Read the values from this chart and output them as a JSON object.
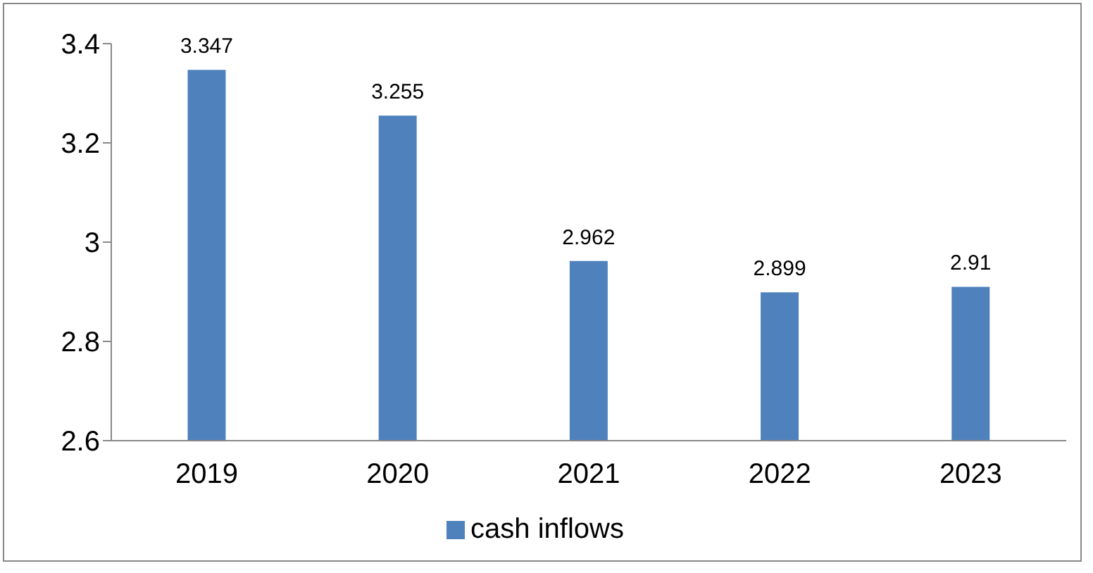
{
  "chart_data": {
    "type": "bar",
    "categories": [
      "2019",
      "2020",
      "2021",
      "2022",
      "2023"
    ],
    "series": [
      {
        "name": "cash inflows",
        "color": "#4f81bd",
        "values": [
          3.347,
          3.255,
          2.962,
          2.899,
          2.91
        ]
      }
    ],
    "ylim": [
      2.6,
      3.4
    ],
    "yticks": [
      2.6,
      2.8,
      3,
      3.2,
      3.4
    ],
    "data_labels": true,
    "legend": "bottom",
    "grid": false
  }
}
